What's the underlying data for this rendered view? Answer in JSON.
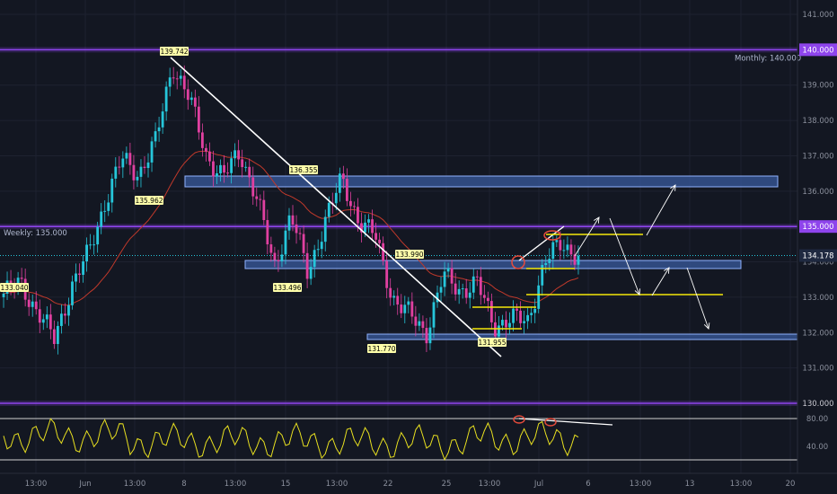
{
  "colors": {
    "background": "#131722",
    "grid": "#1e2230",
    "candle_up": "#26c6da",
    "candle_down": "#e040a0",
    "ema": "#c0392b",
    "trend": "#ffffff",
    "zone_fill": "#3a5b9e",
    "zone_stroke": "#8fb2ff",
    "level_line": "#8e44ec",
    "yellow": "#f5e90a",
    "rsi": "#e8e020",
    "marker": "#e74c3c",
    "label_bg": "#ffffaa",
    "axis_text": "#8a8f9c"
  },
  "chart_data": {
    "type": "candlestick",
    "ylim": [
      130.0,
      141.2
    ],
    "yticks": [
      130.0,
      131.0,
      132.0,
      133.0,
      134.0,
      135.0,
      136.0,
      137.0,
      138.0,
      139.0,
      140.0,
      141.0
    ],
    "ytick_labels": [
      "130.000",
      "131.000",
      "132.000",
      "133.000",
      "134.000",
      "135.000",
      "136.000",
      "137.000",
      "138.000",
      "139.000",
      "140.000",
      "141.000"
    ],
    "x_tick_labels": [
      "13:00",
      "Jun",
      "13:00",
      "8",
      "13:00",
      "15",
      "13:00",
      "22",
      "25",
      "13:00",
      "Jul",
      "6",
      "13:00",
      "13",
      "13:00",
      "20"
    ],
    "current_price": "134.178",
    "levels": [
      {
        "label": "Monthly: 140.000",
        "price": 140.0
      },
      {
        "label": "Weekly: 135.000",
        "price": 135.0
      },
      {
        "label": "",
        "price": 130.0
      }
    ],
    "annotations": [
      "139.742",
      "136.355",
      "135.962",
      "133.990",
      "133.496",
      "133.040",
      "131.770",
      "131.955"
    ],
    "close_series_anchors": [
      [
        "start",
        133.1
      ],
      [
        "a1",
        133.4
      ],
      [
        "a2",
        132.6
      ],
      [
        "a3",
        131.8
      ],
      [
        "a4",
        133.3
      ],
      [
        "a5",
        134.2
      ],
      [
        "a6",
        135.7
      ],
      [
        "a7",
        136.9
      ],
      [
        "a8",
        136.5
      ],
      [
        "a9",
        137.4
      ],
      [
        "a10",
        139.6
      ],
      [
        "a11",
        138.6
      ],
      [
        "a12",
        137.0
      ],
      [
        "a13",
        136.4
      ],
      [
        "a14",
        137.1
      ],
      [
        "a15",
        135.8
      ],
      [
        "a16",
        133.8
      ],
      [
        "a17",
        135.4
      ],
      [
        "a18",
        133.6
      ],
      [
        "a19",
        135.2
      ],
      [
        "a20",
        136.3
      ],
      [
        "a21",
        135.2
      ],
      [
        "a22",
        134.7
      ],
      [
        "a23",
        133.0
      ],
      [
        "a24",
        132.5
      ],
      [
        "a25",
        132.0
      ],
      [
        "a26",
        133.6
      ],
      [
        "a27",
        133.2
      ],
      [
        "a28",
        133.4
      ],
      [
        "a29",
        132.2
      ],
      [
        "a30",
        132.4
      ],
      [
        "a31",
        132.3
      ],
      [
        "a32",
        134.0
      ],
      [
        "a33",
        134.5
      ],
      [
        "a34",
        134.2
      ]
    ],
    "rsi": {
      "levels": [
        80.0,
        40.0
      ],
      "tick_labels": [
        "80.00",
        "40.00"
      ]
    }
  }
}
